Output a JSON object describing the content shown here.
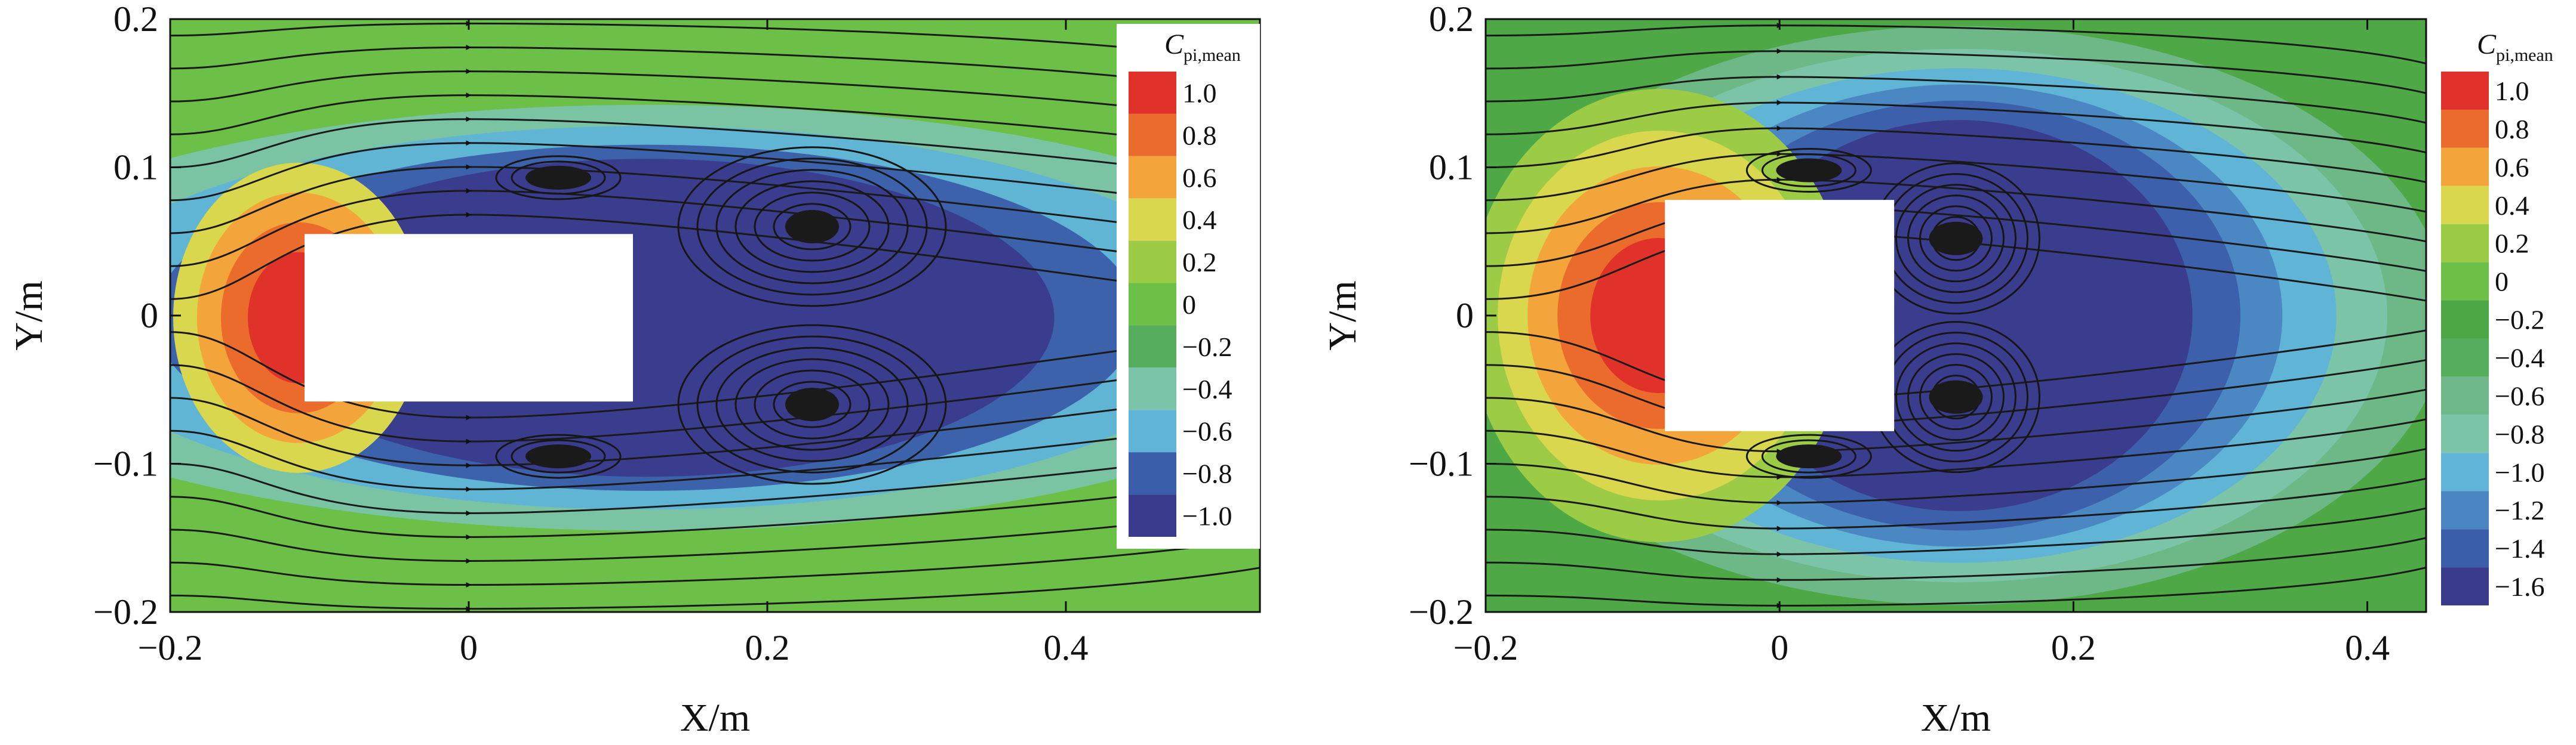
{
  "chart_data": [
    {
      "type": "contour",
      "title": "",
      "xlabel": "X/m",
      "ylabel": "Y/m",
      "xlim": [
        -0.2,
        0.53
      ],
      "ylim": [
        -0.2,
        0.2
      ],
      "x_ticks": [
        -0.2,
        0,
        0.2,
        0.4
      ],
      "x_tick_labels": [
        "−0.2",
        "0",
        "0.2",
        "0.4"
      ],
      "y_ticks": [
        0.2,
        0.1,
        0,
        -0.1,
        -0.2
      ],
      "y_tick_labels": [
        "0.2",
        "0.1",
        "0",
        "−0.1",
        "−0.2"
      ],
      "obstacle": {
        "x": [
          -0.11,
          0.11
        ],
        "y": [
          -0.058,
          0.055
        ]
      },
      "colorbar": {
        "title_main": "C",
        "title_sub": "pi,mean",
        "placement": "top-right",
        "levels": [
          "1.0",
          "0.8",
          "0.6",
          "0.4",
          "0.2",
          "0",
          "−0.2",
          "−0.4",
          "−0.6",
          "−0.8",
          "−1.0"
        ],
        "colors": [
          "#e0322b",
          "#ea6b2c",
          "#f3a43a",
          "#d8d74d",
          "#9ccb46",
          "#6cbf47",
          "#57ad5e",
          "#7cc4a9",
          "#5fb4d8",
          "#3b5eaa",
          "#3a3b8c"
        ]
      },
      "vortex_centers": [
        {
          "x": 0.23,
          "y": 0.06
        },
        {
          "x": 0.23,
          "y": -0.06
        },
        {
          "x": 0.06,
          "y": 0.093
        },
        {
          "x": 0.06,
          "y": -0.095
        }
      ],
      "grid": false
    },
    {
      "type": "contour",
      "title": "",
      "xlabel": "X/m",
      "ylabel": "Y/m",
      "xlim": [
        -0.2,
        0.44
      ],
      "ylim": [
        -0.2,
        0.2
      ],
      "x_ticks": [
        -0.2,
        0,
        0.2,
        0.4
      ],
      "x_tick_labels": [
        "−0.2",
        "0",
        "0.2",
        "0.4"
      ],
      "y_ticks": [
        0.2,
        0.1,
        0,
        -0.1,
        -0.2
      ],
      "y_tick_labels": [
        "0.2",
        "0.1",
        "0",
        "−0.1",
        "−0.2"
      ],
      "obstacle": {
        "x": [
          -0.078,
          0.078
        ],
        "y": [
          -0.078,
          0.078
        ]
      },
      "colorbar": {
        "title_main": "C",
        "title_sub": "pi,mean",
        "placement": "top-right",
        "levels": [
          "1.0",
          "0.8",
          "0.6",
          "0.4",
          "0.2",
          "0",
          "−0.2",
          "−0.4",
          "−0.6",
          "−0.8",
          "−1.0",
          "−1.2",
          "−1.4",
          "−1.6"
        ],
        "colors": [
          "#e0322b",
          "#ea6b2c",
          "#f3a43a",
          "#d8d74d",
          "#9ccb46",
          "#6cbf47",
          "#4da845",
          "#57ad5e",
          "#6fb88a",
          "#7cc4a9",
          "#5fb4d8",
          "#4a86c2",
          "#3b5eaa",
          "#3a3b8c"
        ]
      },
      "vortex_centers": [
        {
          "x": 0.12,
          "y": 0.052
        },
        {
          "x": 0.12,
          "y": -0.055
        },
        {
          "x": 0.02,
          "y": 0.098
        },
        {
          "x": 0.02,
          "y": -0.095
        }
      ],
      "grid": false
    }
  ]
}
